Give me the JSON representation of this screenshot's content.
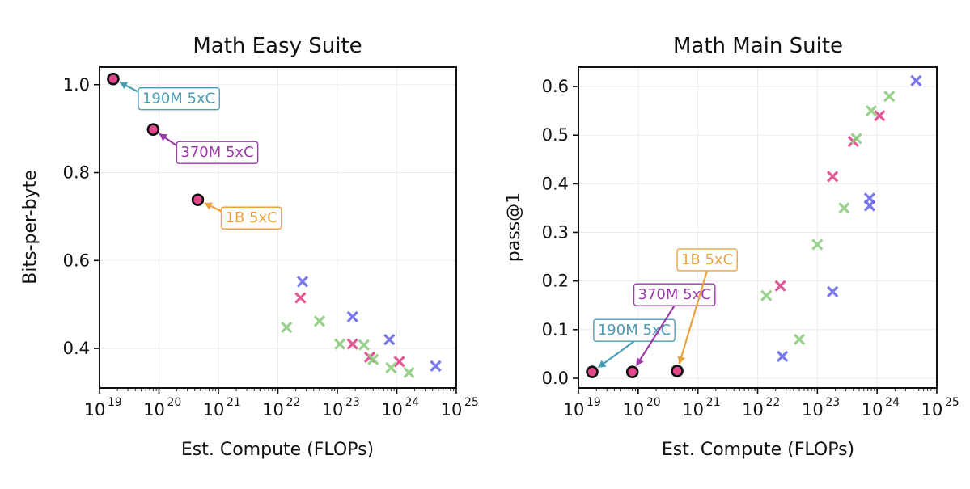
{
  "chart_data": [
    {
      "type": "scatter",
      "title": "Math Easy Suite",
      "xlabel": "Est. Compute (FLOPs)",
      "ylabel": "Bits-per-byte",
      "xscale": "log",
      "xlim": [
        1e+19,
        1e+25
      ],
      "ylim": [
        0.31,
        1.04
      ],
      "x_ticks": [
        {
          "base": "10",
          "exp": "19"
        },
        {
          "base": "10",
          "exp": "20"
        },
        {
          "base": "10",
          "exp": "21"
        },
        {
          "base": "10",
          "exp": "22"
        },
        {
          "base": "10",
          "exp": "23"
        },
        {
          "base": "10",
          "exp": "24"
        },
        {
          "base": "10",
          "exp": "25"
        }
      ],
      "y_ticks": [
        "0.4",
        "0.6",
        "0.8",
        "1.0"
      ],
      "grid": true,
      "series": [
        {
          "marker": "x",
          "color": "#e0488b",
          "points": [
            [
              2.4e+22,
              0.515
            ],
            [
              1.8e+23,
              0.41
            ],
            [
              3.5e+23,
              0.38
            ],
            [
              1.1e+24,
              0.37
            ]
          ]
        },
        {
          "marker": "x",
          "color": "#6a6ae8",
          "points": [
            [
              2.6e+22,
              0.552
            ],
            [
              1.8e+23,
              0.472
            ],
            [
              7.5e+23,
              0.42
            ],
            [
              4.5e+24,
              0.36
            ]
          ]
        },
        {
          "marker": "x",
          "color": "#8fcf7f",
          "points": [
            [
              1.4e+22,
              0.448
            ],
            [
              5e+22,
              0.462
            ],
            [
              1.1e+23,
              0.41
            ],
            [
              2.8e+23,
              0.408
            ],
            [
              4e+23,
              0.375
            ],
            [
              8e+23,
              0.356
            ],
            [
              1.6e+24,
              0.345
            ]
          ]
        },
        {
          "marker": "circle",
          "color": "#e0488b",
          "points": [
            [
              1.7e+19,
              1.013
            ],
            [
              8e+19,
              0.898
            ],
            [
              4.5e+20,
              0.738
            ]
          ]
        }
      ],
      "annotations": [
        {
          "text": "190M 5xC",
          "color": "#4a9db5",
          "x": 1.7e+19,
          "y": 1.013
        },
        {
          "text": "370M 5xC",
          "color": "#9b3aa8",
          "x": 8e+19,
          "y": 0.898
        },
        {
          "text": "1B 5xC",
          "color": "#eba23c",
          "x": 4.5e+20,
          "y": 0.738
        }
      ]
    },
    {
      "type": "scatter",
      "title": "Math Main Suite",
      "xlabel": "Est. Compute (FLOPs)",
      "ylabel": "pass@1",
      "xscale": "log",
      "xlim": [
        1e+19,
        1e+25
      ],
      "ylim": [
        -0.02,
        0.64
      ],
      "x_ticks": [
        {
          "base": "10",
          "exp": "19"
        },
        {
          "base": "10",
          "exp": "20"
        },
        {
          "base": "10",
          "exp": "21"
        },
        {
          "base": "10",
          "exp": "22"
        },
        {
          "base": "10",
          "exp": "23"
        },
        {
          "base": "10",
          "exp": "24"
        },
        {
          "base": "10",
          "exp": "25"
        }
      ],
      "y_ticks": [
        "0.0",
        "0.1",
        "0.2",
        "0.3",
        "0.4",
        "0.5",
        "0.6"
      ],
      "grid": true,
      "series": [
        {
          "marker": "x",
          "color": "#e0488b",
          "points": [
            [
              2.4e+22,
              0.19
            ],
            [
              1.8e+23,
              0.415
            ],
            [
              4e+23,
              0.487
            ],
            [
              1.1e+24,
              0.54
            ]
          ]
        },
        {
          "marker": "x",
          "color": "#6a6ae8",
          "points": [
            [
              2.6e+22,
              0.045
            ],
            [
              1.8e+23,
              0.178
            ],
            [
              7.5e+23,
              0.355
            ],
            [
              7.5e+23,
              0.37
            ],
            [
              4.5e+24,
              0.612
            ]
          ]
        },
        {
          "marker": "x",
          "color": "#8fcf7f",
          "points": [
            [
              1.4e+22,
              0.17
            ],
            [
              5e+22,
              0.08
            ],
            [
              1e+23,
              0.275
            ],
            [
              2.8e+23,
              0.35
            ],
            [
              4.5e+23,
              0.493
            ],
            [
              8e+23,
              0.55
            ],
            [
              1.6e+24,
              0.58
            ]
          ]
        },
        {
          "marker": "circle",
          "color": "#e0488b",
          "points": [
            [
              1.7e+19,
              0.013
            ],
            [
              8e+19,
              0.013
            ],
            [
              4.5e+20,
              0.015
            ]
          ]
        }
      ],
      "annotations": [
        {
          "text": "190M 5xC",
          "color": "#4a9db5",
          "x": 1.7e+19,
          "y": 0.013
        },
        {
          "text": "370M 5xC",
          "color": "#9b3aa8",
          "x": 8e+19,
          "y": 0.013
        },
        {
          "text": "1B 5xC",
          "color": "#eba23c",
          "x": 4.5e+20,
          "y": 0.015
        }
      ]
    }
  ]
}
